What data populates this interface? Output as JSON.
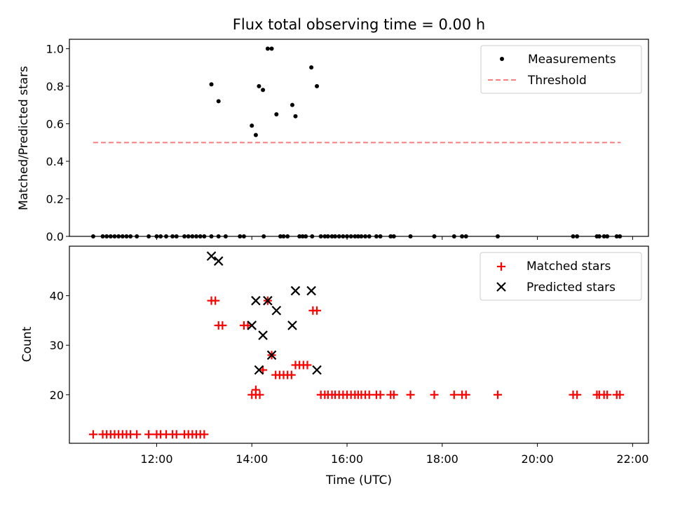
{
  "chart_data": [
    {
      "type": "scatter",
      "title": "Flux total observing time = 0.00 h",
      "xlabel": "",
      "ylabel": "Matched/Predicted stars",
      "xlim": [
        "10:10",
        "22:20"
      ],
      "ylim": [
        0,
        1.05
      ],
      "yticks": [
        "0.0",
        "0.2",
        "0.4",
        "0.6",
        "0.8",
        "1.0"
      ],
      "ytick_values": [
        0,
        0.2,
        0.4,
        0.6,
        0.8,
        1.0
      ],
      "x_ticks_shown": false,
      "legend_position": "top-right",
      "series": [
        {
          "name": "Measurements",
          "marker": "dot",
          "color": "#000000",
          "points": [
            [
              "10:40",
              0
            ],
            [
              "10:52",
              0
            ],
            [
              "10:57",
              0
            ],
            [
              "11:02",
              0
            ],
            [
              "11:07",
              0
            ],
            [
              "11:12",
              0
            ],
            [
              "11:17",
              0
            ],
            [
              "11:22",
              0
            ],
            [
              "11:27",
              0
            ],
            [
              "11:35",
              0
            ],
            [
              "11:50",
              0
            ],
            [
              "12:00",
              0
            ],
            [
              "12:05",
              0
            ],
            [
              "12:12",
              0
            ],
            [
              "12:20",
              0
            ],
            [
              "12:25",
              0
            ],
            [
              "12:35",
              0
            ],
            [
              "12:40",
              0
            ],
            [
              "12:45",
              0
            ],
            [
              "12:50",
              0
            ],
            [
              "12:55",
              0
            ],
            [
              "13:00",
              0
            ],
            [
              "13:09",
              0
            ],
            [
              "13:18",
              0
            ],
            [
              "13:27",
              0
            ],
            [
              "13:45",
              0
            ],
            [
              "13:50",
              0
            ],
            [
              "14:15",
              0
            ],
            [
              "14:36",
              0
            ],
            [
              "14:40",
              0
            ],
            [
              "14:45",
              0
            ],
            [
              "15:00",
              0
            ],
            [
              "15:04",
              0
            ],
            [
              "15:08",
              0
            ],
            [
              "15:16",
              0
            ],
            [
              "15:27",
              0
            ],
            [
              "15:32",
              0
            ],
            [
              "15:36",
              0
            ],
            [
              "15:41",
              0
            ],
            [
              "15:45",
              0
            ],
            [
              "15:50",
              0
            ],
            [
              "15:55",
              0
            ],
            [
              "16:00",
              0
            ],
            [
              "16:05",
              0
            ],
            [
              "16:10",
              0
            ],
            [
              "16:14",
              0
            ],
            [
              "16:18",
              0
            ],
            [
              "16:23",
              0
            ],
            [
              "16:28",
              0
            ],
            [
              "16:37",
              0
            ],
            [
              "16:42",
              0
            ],
            [
              "16:55",
              0
            ],
            [
              "16:59",
              0
            ],
            [
              "17:20",
              0
            ],
            [
              "17:50",
              0
            ],
            [
              "18:15",
              0
            ],
            [
              "18:25",
              0
            ],
            [
              "18:30",
              0
            ],
            [
              "19:10",
              0
            ],
            [
              "20:45",
              0
            ],
            [
              "20:50",
              0
            ],
            [
              "21:15",
              0
            ],
            [
              "21:18",
              0
            ],
            [
              "21:24",
              0
            ],
            [
              "21:28",
              0
            ],
            [
              "21:40",
              0
            ],
            [
              "21:44",
              0
            ],
            [
              "13:09",
              0.81
            ],
            [
              "13:18",
              0.72
            ],
            [
              "14:00",
              0.59
            ],
            [
              "14:05",
              0.54
            ],
            [
              "14:09",
              0.8
            ],
            [
              "14:14",
              0.78
            ],
            [
              "14:20",
              1.0
            ],
            [
              "14:25",
              1.0
            ],
            [
              "14:31",
              0.65
            ],
            [
              "14:51",
              0.7
            ],
            [
              "14:55",
              0.64
            ],
            [
              "15:15",
              0.9
            ],
            [
              "15:22",
              0.8
            ]
          ]
        },
        {
          "name": "Threshold",
          "marker": "dashed-line",
          "color": "#ff7f7f",
          "points": [
            [
              "10:40",
              0.5
            ],
            [
              "21:45",
              0.5
            ]
          ]
        }
      ]
    },
    {
      "type": "scatter",
      "title": "",
      "xlabel": "Time (UTC)",
      "ylabel": "Count",
      "xlim": [
        "10:10",
        "22:20"
      ],
      "ylim": [
        10.2,
        50
      ],
      "yticks": [
        "20",
        "30",
        "40"
      ],
      "ytick_values": [
        20,
        30,
        40
      ],
      "xticks": [
        "12:00",
        "14:00",
        "16:00",
        "18:00",
        "20:00",
        "22:00"
      ],
      "legend_position": "top-right",
      "series": [
        {
          "name": "Matched stars",
          "marker": "plus",
          "color": "#ff0000",
          "points": [
            [
              "10:40",
              12
            ],
            [
              "10:52",
              12
            ],
            [
              "10:57",
              12
            ],
            [
              "11:02",
              12
            ],
            [
              "11:07",
              12
            ],
            [
              "11:12",
              12
            ],
            [
              "11:17",
              12
            ],
            [
              "11:22",
              12
            ],
            [
              "11:27",
              12
            ],
            [
              "11:35",
              12
            ],
            [
              "11:50",
              12
            ],
            [
              "12:00",
              12
            ],
            [
              "12:05",
              12
            ],
            [
              "12:12",
              12
            ],
            [
              "12:20",
              12
            ],
            [
              "12:25",
              12
            ],
            [
              "12:35",
              12
            ],
            [
              "12:40",
              12
            ],
            [
              "12:45",
              12
            ],
            [
              "12:50",
              12
            ],
            [
              "12:55",
              12
            ],
            [
              "13:00",
              12
            ],
            [
              "13:09",
              39
            ],
            [
              "13:14",
              39
            ],
            [
              "13:18",
              34
            ],
            [
              "13:23",
              34
            ],
            [
              "13:50",
              34
            ],
            [
              "13:55",
              34
            ],
            [
              "14:00",
              20
            ],
            [
              "14:05",
              20
            ],
            [
              "14:05",
              21
            ],
            [
              "14:10",
              20
            ],
            [
              "14:14",
              25
            ],
            [
              "14:20",
              39
            ],
            [
              "14:25",
              28
            ],
            [
              "14:30",
              24
            ],
            [
              "14:35",
              24
            ],
            [
              "14:40",
              24
            ],
            [
              "14:45",
              24
            ],
            [
              "14:50",
              24
            ],
            [
              "14:55",
              26
            ],
            [
              "15:00",
              26
            ],
            [
              "15:05",
              26
            ],
            [
              "15:10",
              26
            ],
            [
              "15:17",
              37
            ],
            [
              "15:22",
              37
            ],
            [
              "15:27",
              20
            ],
            [
              "15:32",
              20
            ],
            [
              "15:36",
              20
            ],
            [
              "15:41",
              20
            ],
            [
              "15:45",
              20
            ],
            [
              "15:50",
              20
            ],
            [
              "15:55",
              20
            ],
            [
              "16:00",
              20
            ],
            [
              "16:05",
              20
            ],
            [
              "16:10",
              20
            ],
            [
              "16:14",
              20
            ],
            [
              "16:18",
              20
            ],
            [
              "16:23",
              20
            ],
            [
              "16:28",
              20
            ],
            [
              "16:37",
              20
            ],
            [
              "16:42",
              20
            ],
            [
              "16:55",
              20
            ],
            [
              "16:59",
              20
            ],
            [
              "17:20",
              20
            ],
            [
              "17:50",
              20
            ],
            [
              "18:15",
              20
            ],
            [
              "18:25",
              20
            ],
            [
              "18:30",
              20
            ],
            [
              "19:10",
              20
            ],
            [
              "20:45",
              20
            ],
            [
              "20:50",
              20
            ],
            [
              "21:15",
              20
            ],
            [
              "21:18",
              20
            ],
            [
              "21:24",
              20
            ],
            [
              "21:28",
              20
            ],
            [
              "21:40",
              20
            ],
            [
              "21:44",
              20
            ]
          ]
        },
        {
          "name": "Predicted stars",
          "marker": "x",
          "color": "#000000",
          "points": [
            [
              "13:09",
              48
            ],
            [
              "13:18",
              47
            ],
            [
              "14:00",
              34
            ],
            [
              "14:05",
              39
            ],
            [
              "14:09",
              25
            ],
            [
              "14:14",
              32
            ],
            [
              "14:20",
              39
            ],
            [
              "14:25",
              28
            ],
            [
              "14:31",
              37
            ],
            [
              "14:51",
              34
            ],
            [
              "14:55",
              41
            ],
            [
              "15:15",
              41
            ],
            [
              "15:22",
              25
            ]
          ]
        }
      ]
    }
  ]
}
